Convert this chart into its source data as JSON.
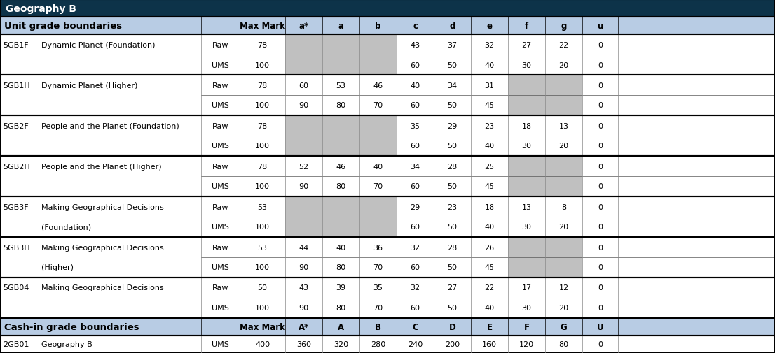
{
  "title": "Geography B",
  "header_bg": "#0d3349",
  "header_text_color": "#ffffff",
  "subheader_bg": "#b8cce4",
  "gray_cell": "#c0c0c0",
  "unit_header": [
    "Unit grade boundaries",
    "Max Mark",
    "a*",
    "a",
    "b",
    "c",
    "d",
    "e",
    "f",
    "g",
    "u"
  ],
  "cash_header": [
    "Cash-in grade boundaries",
    "Max Mark",
    "A*",
    "A",
    "B",
    "C",
    "D",
    "E",
    "F",
    "G",
    "U"
  ],
  "pairs": [
    {
      "code": "5GB1F",
      "name": "Dynamic Planet (Foundation)",
      "name2": "",
      "raw": [
        "78",
        "",
        "",
        "",
        "43",
        "37",
        "32",
        "27",
        "22",
        "0"
      ],
      "ums": [
        "100",
        "",
        "",
        "",
        "60",
        "50",
        "40",
        "30",
        "20",
        "0"
      ],
      "gray_cols": [
        1,
        2,
        3
      ]
    },
    {
      "code": "5GB1H",
      "name": "Dynamic Planet (Higher)",
      "name2": "",
      "raw": [
        "78",
        "60",
        "53",
        "46",
        "40",
        "34",
        "31",
        "",
        "",
        "0"
      ],
      "ums": [
        "100",
        "90",
        "80",
        "70",
        "60",
        "50",
        "45",
        "",
        "",
        "0"
      ],
      "gray_cols": [
        7,
        8
      ]
    },
    {
      "code": "5GB2F",
      "name": "People and the Planet (Foundation)",
      "name2": "",
      "raw": [
        "78",
        "",
        "",
        "",
        "35",
        "29",
        "23",
        "18",
        "13",
        "0"
      ],
      "ums": [
        "100",
        "",
        "",
        "",
        "60",
        "50",
        "40",
        "30",
        "20",
        "0"
      ],
      "gray_cols": [
        1,
        2,
        3
      ]
    },
    {
      "code": "5GB2H",
      "name": "People and the Planet (Higher)",
      "name2": "",
      "raw": [
        "78",
        "52",
        "46",
        "40",
        "34",
        "28",
        "25",
        "",
        "",
        "0"
      ],
      "ums": [
        "100",
        "90",
        "80",
        "70",
        "60",
        "50",
        "45",
        "",
        "",
        "0"
      ],
      "gray_cols": [
        7,
        8
      ]
    },
    {
      "code": "5GB3F",
      "name": "Making Geographical Decisions",
      "name2": "(Foundation)",
      "raw": [
        "53",
        "",
        "",
        "",
        "29",
        "23",
        "18",
        "13",
        "8",
        "0"
      ],
      "ums": [
        "100",
        "",
        "",
        "",
        "60",
        "50",
        "40",
        "30",
        "20",
        "0"
      ],
      "gray_cols": [
        1,
        2,
        3
      ]
    },
    {
      "code": "5GB3H",
      "name": "Making Geographical Decisions",
      "name2": "(Higher)",
      "raw": [
        "53",
        "44",
        "40",
        "36",
        "32",
        "28",
        "26",
        "",
        "",
        "0"
      ],
      "ums": [
        "100",
        "90",
        "80",
        "70",
        "60",
        "50",
        "45",
        "",
        "",
        "0"
      ],
      "gray_cols": [
        7,
        8
      ]
    },
    {
      "code": "5GB04",
      "name": "Making Geographical Decisions",
      "name2": "",
      "raw": [
        "50",
        "43",
        "39",
        "35",
        "32",
        "27",
        "22",
        "17",
        "12",
        "0"
      ],
      "ums": [
        "100",
        "90",
        "80",
        "70",
        "60",
        "50",
        "40",
        "30",
        "20",
        "0"
      ],
      "gray_cols": []
    }
  ],
  "cash_rows": [
    {
      "code": "2GB01",
      "name": "Geography B",
      "data": [
        "400",
        "360",
        "320",
        "280",
        "240",
        "200",
        "160",
        "120",
        "80",
        "0"
      ]
    }
  ]
}
